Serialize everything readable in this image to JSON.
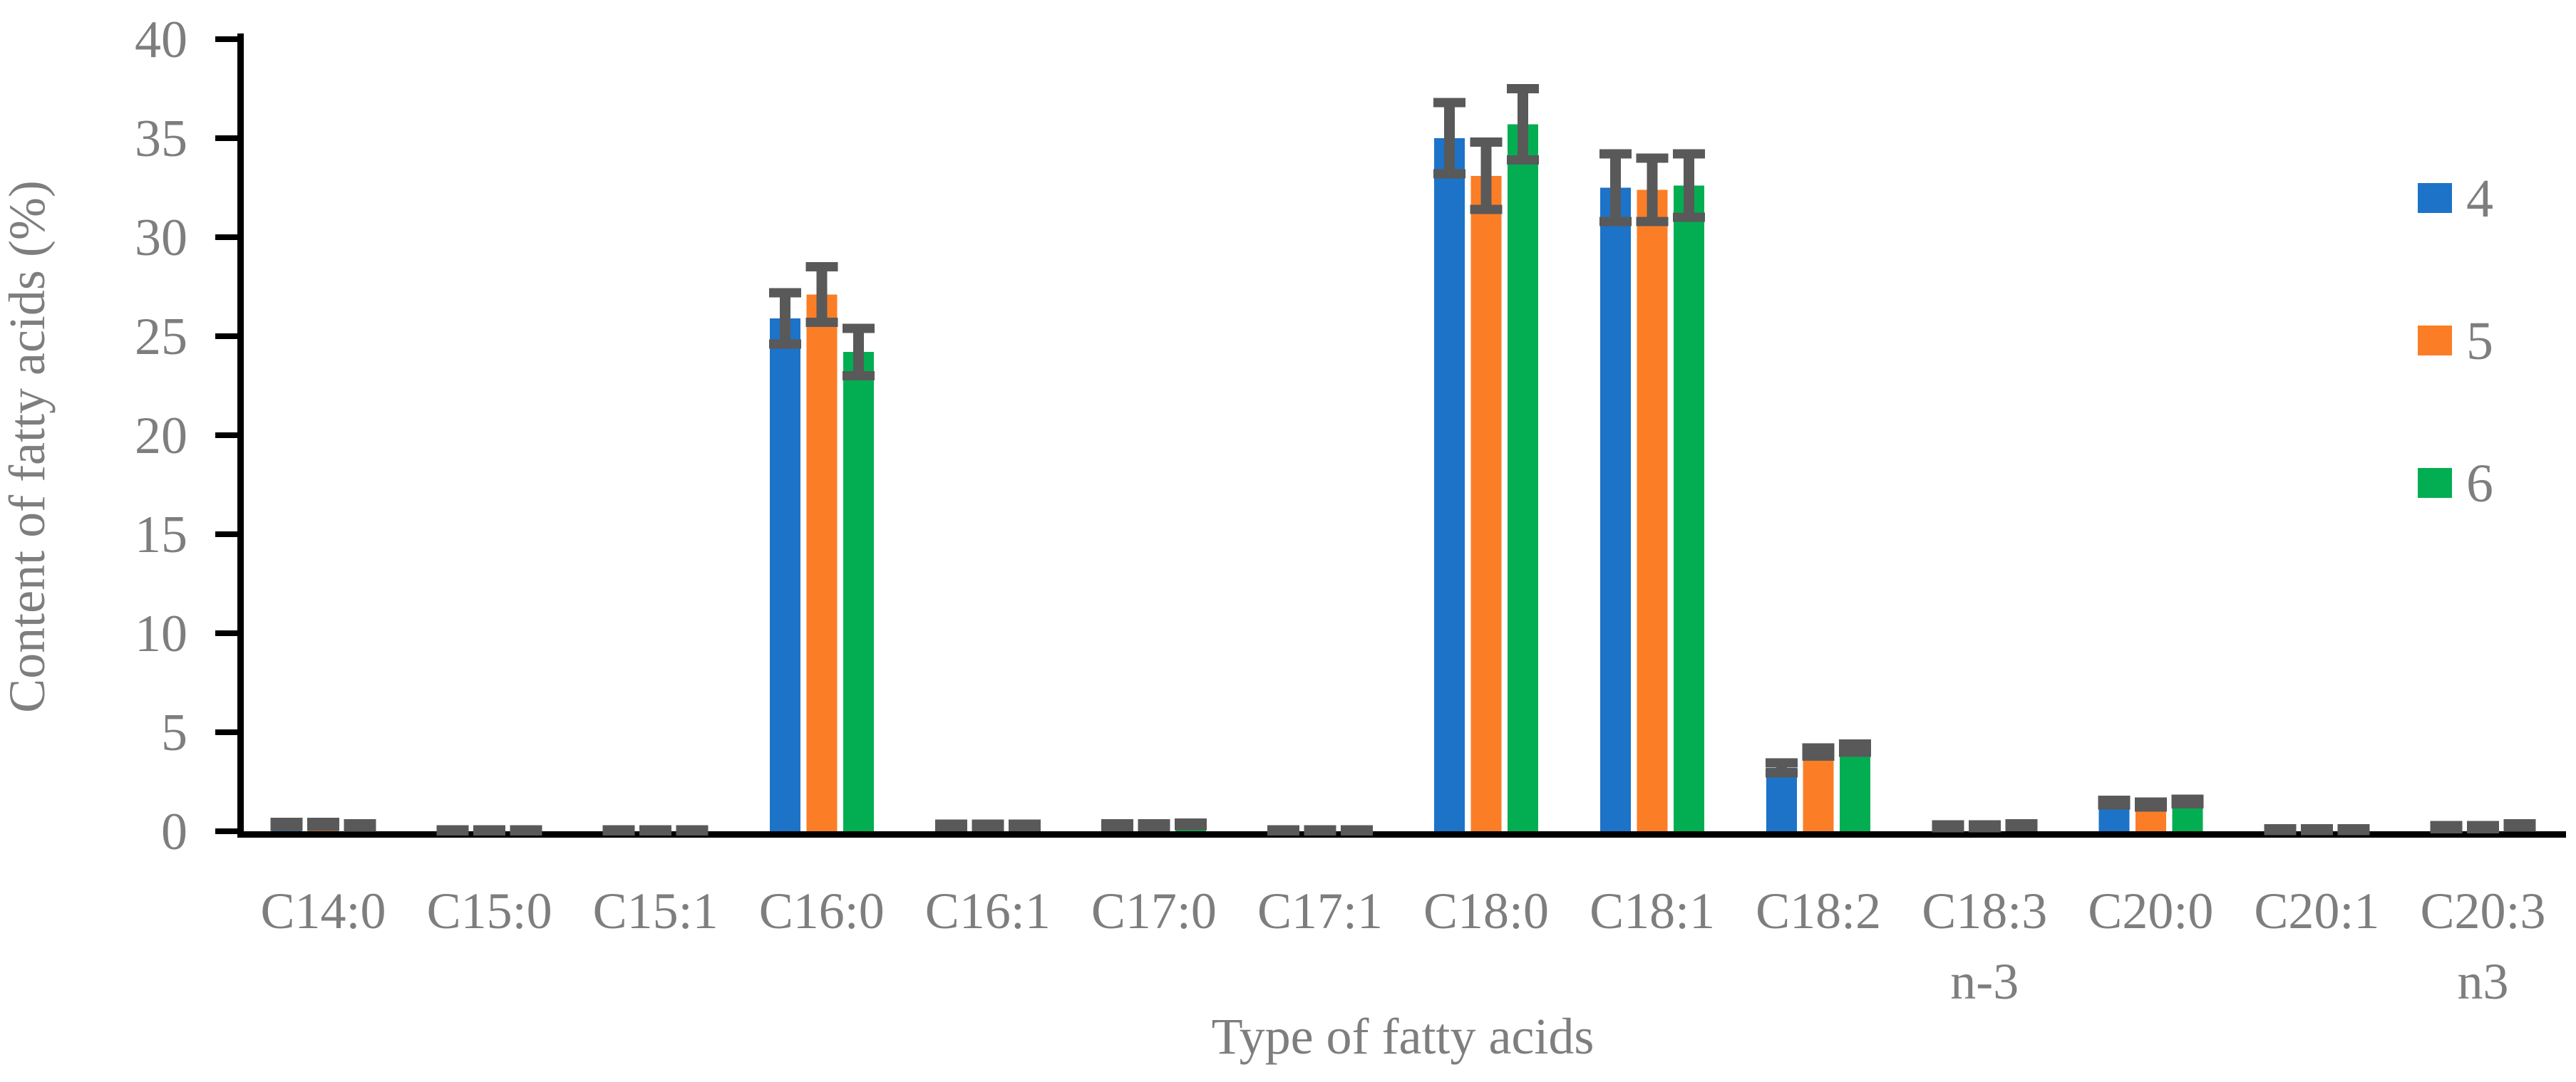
{
  "figure": {
    "background_color": "#ffffff",
    "text_color": "#7e7e7e",
    "axis_color": "#000000",
    "error_bar_color": "#595959"
  },
  "chart_data": {
    "type": "bar",
    "title": "",
    "xlabel": "Type of fatty acids",
    "ylabel": "Content of fatty acids (%)",
    "ylim": [
      0,
      40
    ],
    "y_ticks": [
      0,
      5,
      10,
      15,
      20,
      25,
      30,
      35,
      40
    ],
    "grid": false,
    "legend_position": "right",
    "error_bars": true,
    "categories": [
      "C14:0",
      "C15:0",
      "C15:1",
      "C16:0",
      "C16:1",
      "C17:0",
      "C17:1",
      "C18:0",
      "C18:1",
      "C18:2",
      "C18:3\nn-3",
      "C20:0",
      "C20:1",
      "C20:3\nn3"
    ],
    "series": [
      {
        "name": "4",
        "color": "#1d73c7",
        "values": [
          0.35,
          0.05,
          0.05,
          25.9,
          0.3,
          0.3,
          0.05,
          35.0,
          32.5,
          3.2,
          0.25,
          1.45,
          0.08,
          0.2
        ],
        "errors": [
          0.1,
          0.03,
          0.03,
          1.3,
          0.06,
          0.07,
          0.03,
          1.8,
          1.7,
          0.25,
          0.07,
          0.12,
          0.05,
          0.08
        ]
      },
      {
        "name": "5",
        "color": "#fb7e26",
        "values": [
          0.35,
          0.05,
          0.05,
          27.1,
          0.3,
          0.3,
          0.05,
          33.1,
          32.4,
          4.0,
          0.25,
          1.35,
          0.08,
          0.2
        ],
        "errors": [
          0.1,
          0.03,
          0.03,
          1.4,
          0.06,
          0.07,
          0.03,
          1.7,
          1.6,
          0.2,
          0.07,
          0.12,
          0.05,
          0.08
        ]
      },
      {
        "name": "6",
        "color": "#03ae52",
        "values": [
          0.3,
          0.05,
          0.05,
          24.2,
          0.3,
          0.35,
          0.05,
          35.7,
          32.6,
          4.2,
          0.3,
          1.5,
          0.08,
          0.3
        ],
        "errors": [
          0.08,
          0.03,
          0.03,
          1.2,
          0.06,
          0.07,
          0.03,
          1.8,
          1.6,
          0.2,
          0.07,
          0.12,
          0.05,
          0.08
        ]
      }
    ]
  }
}
